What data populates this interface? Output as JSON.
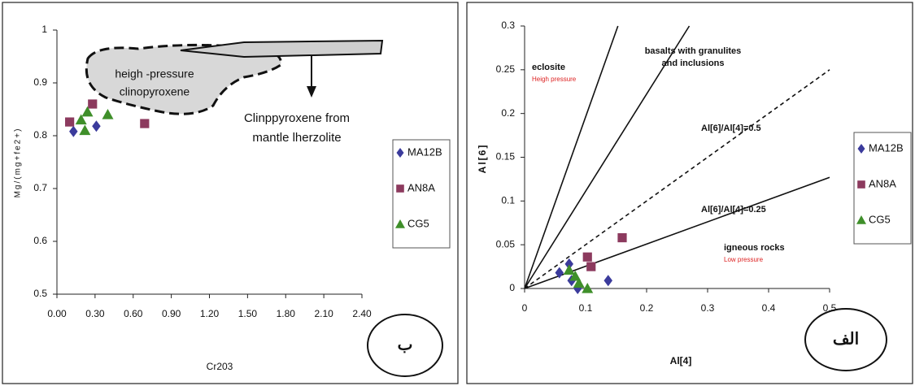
{
  "chart_data": [
    {
      "type": "scatter",
      "x_label": "Cr203",
      "y_label": "Mg/(mg+fe2+)",
      "xlim": [
        0,
        2.4
      ],
      "ylim": [
        0.5,
        1
      ],
      "xticks": [
        {
          "value": 0,
          "label": "0.00"
        },
        {
          "value": 0.3,
          "label": "0.30"
        },
        {
          "value": 0.6,
          "label": "0.60"
        },
        {
          "value": 0.9,
          "label": "0.90"
        },
        {
          "value": 1.2,
          "label": "1.20"
        },
        {
          "value": 1.5,
          "label": "1.50"
        },
        {
          "value": 1.8,
          "label": "1.80"
        },
        {
          "value": 2.1,
          "label": "2.10"
        },
        {
          "value": 2.4,
          "label": "2.40"
        }
      ],
      "yticks": [
        0.5,
        0.6,
        0.7,
        0.8,
        0.9,
        1
      ],
      "series": [
        {
          "name": "MA12B",
          "color": "#3b3b9c",
          "marker": "diamond",
          "x": [
            0.13,
            0.31
          ],
          "values": [
            0.808,
            0.818
          ]
        },
        {
          "name": "AN8A",
          "color": "#8c3a5e",
          "marker": "square",
          "x": [
            0.1,
            0.28,
            0.69
          ],
          "values": [
            0.826,
            0.86,
            0.823
          ]
        },
        {
          "name": "CG5",
          "color": "#3f8f2a",
          "marker": "triangle",
          "x": [
            0.19,
            0.22,
            0.24,
            0.4
          ],
          "values": [
            0.83,
            0.81,
            0.845,
            0.84
          ]
        }
      ],
      "annotations": [
        "heigh -pressure",
        "clinopyroxene",
        "Clinppyroxene from",
        "mantle lherzolite",
        "ب"
      ]
    },
    {
      "type": "scatter",
      "x_label": "Al[4]",
      "y_label": "Al[6]",
      "xlim": [
        0,
        0.5
      ],
      "ylim": [
        0,
        0.3
      ],
      "xticks": [
        0,
        0.1,
        0.2,
        0.3,
        0.4,
        0.5
      ],
      "yticks": [
        0,
        0.05,
        0.1,
        0.15,
        0.2,
        0.25,
        0.3
      ],
      "series": [
        {
          "name": "MA12B",
          "color": "#3b3b9c",
          "marker": "diamond",
          "x": [
            0.057,
            0.073,
            0.077,
            0.087,
            0.137
          ],
          "values": [
            0.018,
            0.028,
            0.009,
            0,
            0.009
          ]
        },
        {
          "name": "AN8A",
          "color": "#8c3a5e",
          "marker": "square",
          "x": [
            0.103,
            0.109,
            0.16
          ],
          "values": [
            0.036,
            0.025,
            0.058
          ]
        },
        {
          "name": "CG5",
          "color": "#3f8f2a",
          "marker": "triangle",
          "x": [
            0.073,
            0.083,
            0.089,
            0.103
          ],
          "values": [
            0.021,
            0.014,
            0.006,
            0
          ]
        }
      ],
      "reference_lines": [
        {
          "x": [
            0,
            0.153
          ],
          "y": [
            0,
            0.3
          ],
          "style": "solid"
        },
        {
          "x": [
            0,
            0.27
          ],
          "y": [
            0,
            0.3
          ],
          "style": "solid"
        },
        {
          "x": [
            0,
            0.5
          ],
          "y": [
            0,
            0.25
          ],
          "style": "dashed"
        },
        {
          "x": [
            0,
            0.5
          ],
          "y": [
            0,
            0.127
          ],
          "style": "solid"
        }
      ],
      "annotations": [
        "eclosite",
        "Heigh pressure",
        "basalts with granulites",
        "and inclusions",
        "Al[6]/Al[4]=0.5",
        "Al[6]/Al[4]=0.25",
        "igneous rocks",
        "Low pressure",
        "الف"
      ]
    }
  ]
}
